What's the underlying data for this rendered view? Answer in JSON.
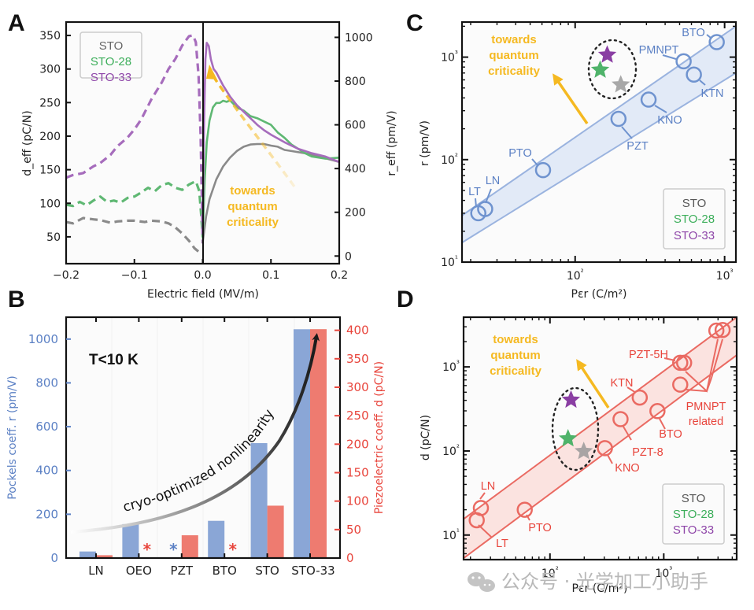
{
  "figure": {
    "panel_letters": [
      "A",
      "B",
      "C",
      "D"
    ],
    "watermark": "公众号 · 光学加工小助手"
  },
  "colors": {
    "STO": "#8a8a8a",
    "STO-28": "#5fb873",
    "STO-33": "#a66cbc",
    "STO-33-star": "#8a3ea3",
    "annotation": "#f5b921",
    "blue": "#5b80c4",
    "blue_bar": "#8aa6d6",
    "red": "#e8453c",
    "red_bar": "#ee7b70",
    "c_marker": "#6f93cf",
    "d_marker": "#ea6a62"
  },
  "chart_data": [
    {
      "id": "A",
      "type": "line",
      "title": "",
      "xlabel": "Electric field (MV/m)",
      "ylabel": "d_eff (pC/N)",
      "ylabel_right": "r_eff (pm/V)",
      "xlim": [
        -0.2,
        0.2
      ],
      "ylim": [
        10,
        370
      ],
      "ylim_right": [
        -35,
        1070
      ],
      "xticks": [
        -0.2,
        -0.1,
        0.0,
        0.1,
        0.2
      ],
      "xtick_labels": [
        "−0.2",
        "−0.1",
        "0.0",
        "0.1",
        "0.2"
      ],
      "yticks": [
        50,
        100,
        150,
        200,
        250,
        300,
        350
      ],
      "yticks_right": [
        0,
        200,
        400,
        600,
        800,
        1000
      ],
      "legend": {
        "position": "top-left",
        "entries": [
          "STO",
          "STO-28",
          "STO-33"
        ]
      },
      "annotation": {
        "text_lines": [
          "towards",
          "quantum",
          "criticality"
        ],
        "style": "dashed-arrow"
      },
      "series": [
        {
          "name": "STO",
          "style": "dashed",
          "axis": "left",
          "x": [
            -0.2,
            -0.19,
            -0.175,
            -0.16,
            -0.15,
            -0.135,
            -0.125,
            -0.11,
            -0.1,
            -0.085,
            -0.075,
            -0.06,
            -0.05,
            -0.04,
            -0.03,
            -0.02,
            -0.012,
            -0.005,
            0.0
          ],
          "y": [
            72,
            70,
            78,
            76,
            75,
            71,
            73,
            74,
            74,
            72,
            74,
            73,
            70,
            64,
            55,
            44,
            33,
            27,
            25
          ]
        },
        {
          "name": "STO-28",
          "style": "dashed",
          "axis": "left",
          "x": [
            -0.2,
            -0.19,
            -0.18,
            -0.17,
            -0.16,
            -0.15,
            -0.14,
            -0.13,
            -0.12,
            -0.11,
            -0.1,
            -0.09,
            -0.08,
            -0.07,
            -0.06,
            -0.05,
            -0.04,
            -0.03,
            -0.02,
            -0.01,
            -0.005,
            -0.002,
            0.0
          ],
          "y": [
            98,
            96,
            102,
            97,
            104,
            110,
            102,
            104,
            101,
            108,
            110,
            116,
            123,
            118,
            127,
            130,
            123,
            120,
            128,
            133,
            118,
            80,
            50
          ]
        },
        {
          "name": "STO-33",
          "style": "dashed",
          "axis": "left",
          "x": [
            -0.2,
            -0.19,
            -0.175,
            -0.16,
            -0.15,
            -0.135,
            -0.125,
            -0.11,
            -0.1,
            -0.09,
            -0.075,
            -0.06,
            -0.05,
            -0.04,
            -0.03,
            -0.02,
            -0.014,
            -0.01,
            -0.006,
            -0.003,
            -0.001,
            0.0
          ],
          "y": [
            138,
            142,
            145,
            155,
            160,
            172,
            185,
            198,
            210,
            225,
            255,
            280,
            300,
            315,
            335,
            349,
            350,
            340,
            290,
            200,
            100,
            40
          ]
        },
        {
          "name": "STO",
          "style": "solid",
          "axis": "right",
          "x": [
            0.0,
            0.005,
            0.01,
            0.02,
            0.03,
            0.04,
            0.05,
            0.06,
            0.07,
            0.08,
            0.09,
            0.1,
            0.11,
            0.12,
            0.13,
            0.15,
            0.17,
            0.2
          ],
          "y": [
            60,
            180,
            260,
            350,
            410,
            450,
            480,
            500,
            510,
            512,
            512,
            505,
            500,
            485,
            480,
            470,
            455,
            430
          ]
        },
        {
          "name": "STO-28",
          "style": "solid",
          "axis": "right",
          "x": [
            0.0,
            0.003,
            0.006,
            0.01,
            0.015,
            0.02,
            0.025,
            0.03,
            0.035,
            0.04,
            0.05,
            0.06,
            0.07,
            0.08,
            0.09,
            0.1,
            0.11,
            0.12,
            0.13,
            0.14,
            0.15,
            0.16,
            0.18,
            0.2
          ],
          "y": [
            80,
            350,
            520,
            620,
            680,
            700,
            700,
            710,
            705,
            712,
            680,
            665,
            640,
            630,
            615,
            600,
            565,
            540,
            510,
            490,
            470,
            455,
            445,
            450
          ]
        },
        {
          "name": "STO-33",
          "style": "solid",
          "axis": "right",
          "x": [
            0.0,
            0.002,
            0.004,
            0.006,
            0.009,
            0.012,
            0.016,
            0.02,
            0.03,
            0.04,
            0.05,
            0.06,
            0.07,
            0.08,
            0.09,
            0.1,
            0.12,
            0.14,
            0.16,
            0.18,
            0.2
          ],
          "y": [
            100,
            600,
            900,
            975,
            960,
            900,
            855,
            840,
            780,
            730,
            690,
            660,
            630,
            600,
            575,
            555,
            520,
            490,
            470,
            455,
            430
          ]
        }
      ]
    },
    {
      "id": "B",
      "type": "bar",
      "title": "",
      "xlabel": "",
      "ylabel": "Pockels coeff. r (pm/V)",
      "ylabel_right": "Piezoelectric coeff. d (pC/N)",
      "ylim": [
        0,
        1100
      ],
      "ylim_right": [
        0,
        423
      ],
      "yticks": [
        0,
        200,
        400,
        600,
        800,
        1000
      ],
      "yticks_right": [
        0,
        50,
        100,
        150,
        200,
        250,
        300,
        350,
        400
      ],
      "categories": [
        "LN",
        "OEO",
        "PZT",
        "BTO",
        "STO",
        "STO-33"
      ],
      "series": [
        {
          "name": "Pockels coeff. r (pm/V)",
          "axis": "left",
          "values": [
            30,
            155,
            null,
            170,
            525,
            1045
          ],
          "missing_marker": "*"
        },
        {
          "name": "Piezoelectric coeff. d (pC/N)",
          "axis": "right",
          "values": [
            5,
            null,
            40,
            null,
            92,
            402
          ],
          "missing_marker": "*"
        }
      ],
      "annotations": {
        "temperature": "T<10 K",
        "arrow_text": "cryo-optimized nonlinearity"
      }
    },
    {
      "id": "C",
      "type": "scatter",
      "xscale": "log",
      "yscale": "log",
      "xlabel": "Pεr (C/m²)",
      "ylabel": "r (pm/V)",
      "xlim": [
        17.5,
        1190
      ],
      "ylim": [
        10,
        2200
      ],
      "xticks": [
        100,
        1000
      ],
      "xtick_labels": [
        "10²",
        "10³"
      ],
      "yticks": [
        10,
        100,
        1000
      ],
      "ytick_labels": [
        "10¹",
        "10²",
        "10³"
      ],
      "legend": {
        "position": "bottom-right",
        "entries": [
          "STO",
          "STO-28",
          "STO-33"
        ]
      },
      "annotation": {
        "text_lines": [
          "towards",
          "quantum",
          "criticality"
        ]
      },
      "band": {
        "lower": {
          "x": [
            17.5,
            1190
          ],
          "y": [
            15.5,
            700
          ]
        },
        "upper": {
          "x": [
            17.5,
            1190
          ],
          "y": [
            28.5,
            2000
          ]
        }
      },
      "points": [
        {
          "label": "LT",
          "x": 22.5,
          "y": 30
        },
        {
          "label": "LN",
          "x": 25,
          "y": 33
        },
        {
          "label": "PTO",
          "x": 61,
          "y": 79
        },
        {
          "label": "PZT",
          "x": 195,
          "y": 250
        },
        {
          "label": "KNO",
          "x": 310,
          "y": 385
        },
        {
          "label": "PMNPT",
          "x": 532,
          "y": 910
        },
        {
          "label": "KTN",
          "x": 623,
          "y": 676
        },
        {
          "label": "BTO",
          "x": 886,
          "y": 1400
        }
      ],
      "stars": [
        {
          "name": "STO-33",
          "x": 164,
          "y": 1050
        },
        {
          "name": "STO-28",
          "x": 147,
          "y": 750
        },
        {
          "name": "STO",
          "x": 202,
          "y": 538
        }
      ]
    },
    {
      "id": "D",
      "type": "scatter",
      "xscale": "log",
      "yscale": "log",
      "xlabel": "Pεr (C/m²)",
      "ylabel": "d (pC/N)",
      "xlim": [
        17.4,
        4375
      ],
      "ylim": [
        5.1,
        3900
      ],
      "xticks": [
        100,
        1000
      ],
      "xtick_labels": [
        "10²",
        "10³"
      ],
      "yticks": [
        10,
        100,
        1000
      ],
      "ytick_labels": [
        "10¹",
        "10²",
        "10³"
      ],
      "legend": {
        "position": "bottom-right",
        "entries": [
          "STO",
          "STO-28",
          "STO-33"
        ]
      },
      "annotation": {
        "text_lines": [
          "towards",
          "quantum",
          "criticality"
        ]
      },
      "band": {
        "lower": {
          "x": [
            17.4,
            4375
          ],
          "y": [
            5.3,
            1380
          ]
        },
        "upper": {
          "x": [
            17.4,
            4375
          ],
          "y": [
            15.5,
            3900
          ]
        }
      },
      "points": [
        {
          "label": "LN",
          "x": 24.7,
          "y": 21
        },
        {
          "label": "LT",
          "x": 22.7,
          "y": 15
        },
        {
          "label": "PTO",
          "x": 60,
          "y": 20
        },
        {
          "label": "KNO",
          "x": 304,
          "y": 108
        },
        {
          "label": "PZT-8",
          "x": 417,
          "y": 239
        },
        {
          "label": "KTN",
          "x": 615,
          "y": 432
        },
        {
          "label": "BTO",
          "x": 880,
          "y": 298
        },
        {
          "label": "PZT-5H",
          "x": 1396,
          "y": 1120
        },
        {
          "label": "PMNPT",
          "x": 1510,
          "y": 1120
        },
        {
          "label": "PMNPT",
          "x": 1396,
          "y": 615
        },
        {
          "label": "PMNPT",
          "x": 2900,
          "y": 2700
        },
        {
          "label": "PMNPT",
          "x": 3290,
          "y": 2750
        }
      ],
      "group_label": [
        "PMNPT",
        "related"
      ],
      "stars": [
        {
          "name": "STO-33",
          "x": 153,
          "y": 405
        },
        {
          "name": "STO-28",
          "x": 144,
          "y": 140
        },
        {
          "name": "STO",
          "x": 198,
          "y": 99
        }
      ]
    }
  ]
}
